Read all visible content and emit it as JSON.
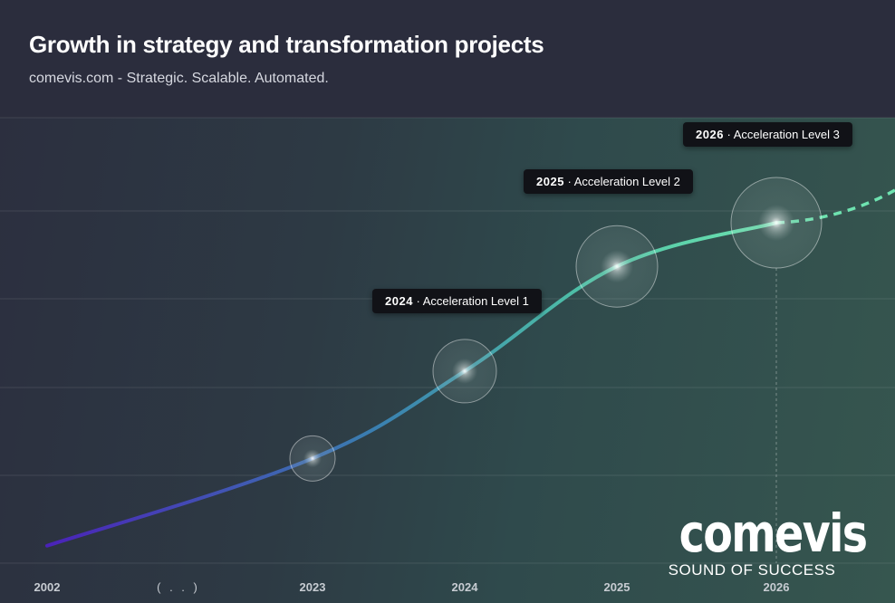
{
  "title": "Growth in strategy and transformation projects",
  "subtitle": "comevis.com - Strategic. Scalable. Automated.",
  "colors": {
    "line_start": "#4a22b8",
    "line_mid": "#3a8fb0",
    "line_end": "#5fd8a8",
    "annotation_bg": "#111217"
  },
  "chart_data": {
    "type": "line",
    "title": "Growth in strategy and transformation projects",
    "subtitle": "comevis.com - Strategic. Scalable. Automated.",
    "xlabel": "",
    "ylabel": "",
    "x_ticks": [
      "2002",
      "( . . )",
      "2023",
      "2024",
      "2025",
      "2026"
    ],
    "y_axis_labels_shown": false,
    "grid": "horizontal",
    "legend": "none",
    "series": [
      {
        "x": [
          "2002",
          "2023",
          "2024",
          "2025",
          "2026"
        ],
        "values": [
          0.2,
          1.2,
          2.2,
          3.4,
          3.9
        ],
        "projection_after": "2026"
      }
    ],
    "highlighted_points": [
      {
        "x": "2023",
        "value": 1.2
      },
      {
        "x": "2024",
        "value": 2.2
      },
      {
        "x": "2025",
        "value": 3.4
      },
      {
        "x": "2026",
        "value": 3.9
      }
    ],
    "annotations": [
      {
        "x": "2024",
        "year": "2024",
        "text": "Acceleration Level 1"
      },
      {
        "x": "2025",
        "year": "2025",
        "text": "Acceleration Level 2"
      },
      {
        "x": "2026",
        "year": "2026",
        "text": "Acceleration Level 3"
      }
    ],
    "ylim": [
      0,
      5
    ]
  },
  "logo": {
    "word": "comevis",
    "tagline": "SOUND OF SUCCESS"
  }
}
